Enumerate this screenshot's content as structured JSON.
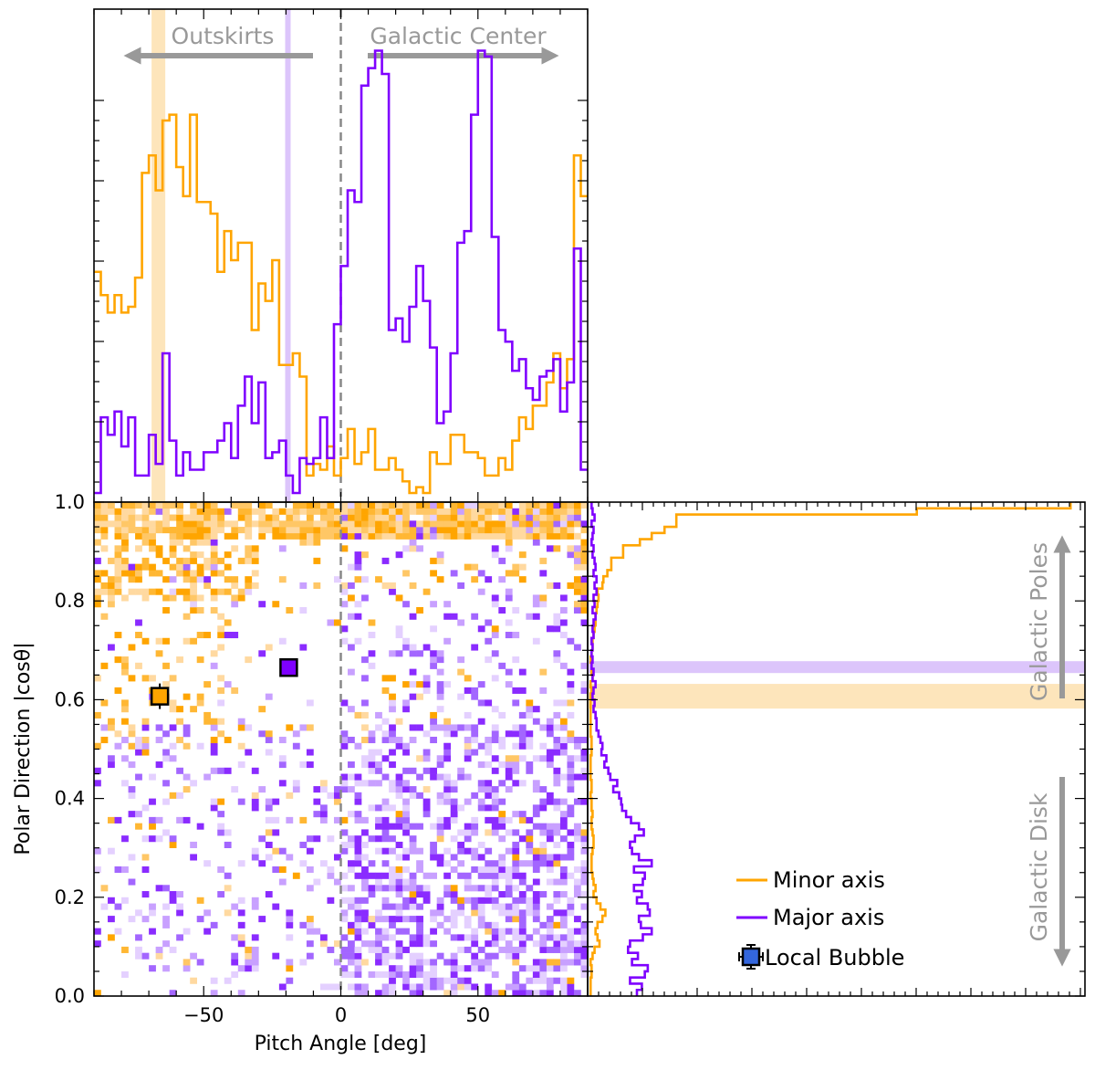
{
  "colors": {
    "minor": "#ffa500",
    "major": "#7f00ff",
    "minor_band": "#fde5bb",
    "major_band": "#dcc5fb",
    "annotation": "#999999",
    "local_bubble": "#3366dd",
    "zero_line": "#888888"
  },
  "annotations": {
    "outskirts": "Outskirts",
    "galactic_center": "Galactic Center",
    "galactic_poles": "Galactic Poles",
    "galactic_disk": "Galactic Disk"
  },
  "chart_data": [
    {
      "type": "histogram",
      "panel": "top",
      "bin_width": 2.5,
      "x_start": -90,
      "xlim": [
        -90,
        90
      ],
      "marker_bands": [
        {
          "name": "Minor axis",
          "x_center": -66.5,
          "half_width": 2.5
        },
        {
          "name": "Major axis",
          "x_center": -19.3,
          "half_width": 1.0
        }
      ],
      "series": [
        {
          "name": "Minor axis",
          "values": [
            38,
            34,
            31,
            34,
            31,
            32,
            37,
            55,
            58,
            52,
            64,
            65,
            56,
            51,
            65,
            50,
            50,
            48,
            38,
            45,
            40,
            43,
            43,
            28,
            36,
            33,
            40,
            22,
            22,
            24,
            20,
            3,
            5,
            4,
            8,
            3,
            6,
            11,
            5,
            7,
            11,
            4,
            4,
            6,
            4,
            2,
            0,
            1,
            0,
            7,
            5,
            5,
            10,
            10,
            7,
            7,
            6,
            3,
            3,
            6,
            4,
            9,
            13,
            11,
            15,
            15,
            19,
            24,
            18,
            23,
            58,
            51
          ]
        },
        {
          "name": "Major axis",
          "values": [
            0,
            13,
            10,
            14,
            8,
            13,
            3,
            3,
            10,
            5,
            24,
            9,
            3,
            7,
            4,
            4,
            7,
            7,
            9,
            12,
            6,
            15,
            20,
            12,
            19,
            6,
            7,
            9,
            3,
            0,
            6,
            5,
            6,
            13,
            6,
            29,
            39,
            52,
            50,
            70,
            73,
            76,
            72,
            28,
            30,
            26,
            32,
            39,
            33,
            25,
            12,
            14,
            24,
            43,
            45,
            65,
            76,
            75,
            44,
            28,
            26,
            21,
            23,
            18,
            16,
            20,
            21,
            23,
            14,
            19,
            42,
            4
          ]
        }
      ]
    },
    {
      "type": "heatmap",
      "panel": "main",
      "xlabel": "Pitch Angle [deg]",
      "ylabel": "Polar Direction |cosθ|",
      "xlim": [
        -90,
        90
      ],
      "ylim": [
        0,
        1
      ],
      "xticks": [
        -50,
        0,
        50
      ],
      "yticks": [
        0.0,
        0.2,
        0.4,
        0.6,
        0.8,
        1.0
      ],
      "grid": false,
      "points": [
        {
          "name": "Minor axis",
          "x": -66,
          "y": 0.607
        },
        {
          "name": "Major axis",
          "x": -19,
          "y": 0.665
        }
      ]
    },
    {
      "type": "histogram",
      "panel": "right",
      "orientation": "horizontal",
      "bin_width": 0.0125,
      "ylim": [
        0,
        1
      ],
      "marker_bands": [
        {
          "name": "Minor axis",
          "y_center": 0.607,
          "half_width": 0.025
        },
        {
          "name": "Major axis",
          "y_center": 0.666,
          "half_width": 0.012
        }
      ],
      "series": [
        {
          "name": "Minor axis",
          "values": [
            0.3,
            0.3,
            0.3,
            0.4,
            0.4,
            0.3,
            0.5,
            0.7,
            1.2,
            1.0,
            0.8,
            1.0,
            1.5,
            1.8,
            1.3,
            0.9,
            0.6,
            0.8,
            0.6,
            0.5,
            0.4,
            0.4,
            0.4,
            0.5,
            0.6,
            0.6,
            0.5,
            0.4,
            0.4,
            0.5,
            0.4,
            0.4,
            0.3,
            0.4,
            0.4,
            0.3,
            0.3,
            0.3,
            0.3,
            0.4,
            0.4,
            0.4,
            0.3,
            0.3,
            0.3,
            0.3,
            0.3,
            0.3,
            0.3,
            0.4,
            0.3,
            0.5,
            0.4,
            0.4,
            0.3,
            0.4,
            0.5,
            0.5,
            0.6,
            0.7,
            0.8,
            0.8,
            0.9,
            1.0,
            1.1,
            1.0,
            1.5,
            1.6,
            2.0,
            2.4,
            2.4,
            3.6,
            3.6,
            5.3,
            6.5,
            7.8,
            9.0,
            9.0,
            33.4,
            49.0
          ]
        },
        {
          "name": "Major axis",
          "values": [
            5.0,
            5.5,
            4.3,
            5.8,
            6.1,
            4.5,
            5.1,
            4.1,
            4.3,
            5.6,
            6.5,
            5.4,
            5.2,
            6.3,
            6.1,
            5.0,
            5.5,
            4.7,
            5.6,
            5.8,
            4.7,
            6.5,
            5.2,
            4.5,
            4.3,
            4.8,
            5.7,
            5.2,
            4.4,
            3.9,
            3.5,
            3.4,
            3.2,
            2.6,
            3.0,
            2.3,
            2.1,
            1.7,
            1.9,
            1.4,
            1.5,
            1.3,
            1.1,
            0.9,
            0.9,
            0.8,
            0.6,
            0.7,
            0.5,
            0.6,
            0.8,
            0.5,
            0.6,
            0.4,
            0.5,
            0.4,
            0.5,
            0.4,
            0.6,
            0.5,
            0.6,
            0.8,
            0.5,
            0.7,
            0.6,
            0.9,
            0.7,
            0.9,
            0.6,
            0.8,
            0.7,
            0.5,
            0.6,
            0.4,
            0.5,
            0.6,
            0.4,
            0.7,
            0.5,
            0.4
          ]
        }
      ],
      "legend": {
        "placement": "lower-right",
        "entries": [
          {
            "name": "Minor axis",
            "label": "Minor axis"
          },
          {
            "name": "Major axis",
            "label": "Major axis"
          },
          {
            "name": "Local Bubble",
            "label": "Local Bubble"
          }
        ]
      }
    }
  ]
}
